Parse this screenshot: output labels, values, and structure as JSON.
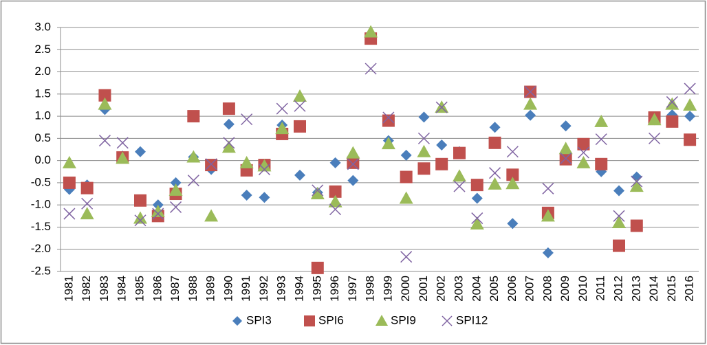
{
  "chart_data": {
    "type": "scatter",
    "categories": [
      "1981",
      "1982",
      "1983",
      "1984",
      "1985",
      "1986",
      "1987",
      "1988",
      "1989",
      "1990",
      "1991",
      "1992",
      "1993",
      "1994",
      "1995",
      "1996",
      "1997",
      "1998",
      "1999",
      "2000",
      "2001",
      "2002",
      "2003",
      "2004",
      "2005",
      "2006",
      "2007",
      "2008",
      "2009",
      "2010",
      "2011",
      "2012",
      "2013",
      "2014",
      "2015",
      "2016"
    ],
    "series": [
      {
        "name": "SPI3",
        "color": "#4a7ebb",
        "marker": "diamond",
        "values": [
          -0.65,
          -0.55,
          1.15,
          0.1,
          0.2,
          -1.0,
          -0.5,
          0.08,
          -0.2,
          0.82,
          -0.78,
          -0.83,
          0.8,
          -0.33,
          -0.72,
          -0.05,
          -0.45,
          2.85,
          0.45,
          0.12,
          0.98,
          0.35,
          0.2,
          -0.85,
          0.75,
          -1.42,
          1.02,
          -2.08,
          0.78,
          0.35,
          -0.25,
          -0.68,
          -0.37,
          0.92,
          1.03,
          1.0
        ]
      },
      {
        "name": "SPI6",
        "color": "#c0504d",
        "marker": "square",
        "values": [
          -0.5,
          -0.62,
          1.47,
          0.07,
          -0.9,
          -1.25,
          -0.75,
          1.0,
          -0.1,
          1.17,
          -0.22,
          -0.1,
          0.6,
          0.77,
          -2.42,
          -0.7,
          -0.05,
          2.75,
          0.9,
          -0.37,
          -0.18,
          -0.08,
          0.17,
          -0.55,
          0.4,
          -0.32,
          1.55,
          -1.18,
          0.03,
          0.37,
          -0.08,
          -1.92,
          -1.47,
          0.97,
          0.88,
          0.47
        ]
      },
      {
        "name": "SPI9",
        "color": "#9bbb59",
        "marker": "triangle",
        "values": [
          -0.05,
          -1.2,
          1.27,
          0.05,
          -1.3,
          -1.15,
          -0.67,
          0.08,
          -1.25,
          0.3,
          -0.05,
          -0.12,
          0.72,
          1.45,
          -0.75,
          -0.93,
          0.17,
          2.9,
          0.38,
          -0.85,
          0.2,
          1.2,
          -0.35,
          -1.43,
          -0.53,
          -0.52,
          1.27,
          -1.25,
          0.27,
          -0.05,
          0.88,
          -1.4,
          -0.58,
          0.92,
          1.27,
          1.25
        ]
      },
      {
        "name": "SPI12",
        "color": "#8064a2",
        "marker": "cross",
        "values": [
          -1.2,
          -0.97,
          0.45,
          0.4,
          -1.35,
          -1.2,
          -1.05,
          -0.45,
          -0.08,
          0.4,
          0.93,
          -0.2,
          1.17,
          1.23,
          -0.67,
          -1.1,
          -0.08,
          2.07,
          0.97,
          -2.17,
          0.5,
          1.2,
          -0.58,
          -1.3,
          -0.28,
          0.2,
          1.55,
          -0.63,
          0.05,
          0.18,
          0.48,
          -1.25,
          -0.47,
          0.5,
          1.32,
          1.62
        ]
      }
    ],
    "ylim": [
      -2.5,
      3.0
    ],
    "yticks": [
      {
        "value": -2.5,
        "label": "-2.5"
      },
      {
        "value": -2.0,
        "label": "-2.0"
      },
      -1.5,
      {
        "value": -1.0,
        "label": "-1.0"
      },
      -0.5,
      {
        "value": 0.0,
        "label": "0.0"
      },
      0.5,
      {
        "value": 1.0,
        "label": "1.0"
      },
      1.5,
      {
        "value": 2.0,
        "label": "2.0"
      },
      2.5,
      {
        "value": 3.0,
        "label": "3.0"
      }
    ],
    "grid": true,
    "legend": "bottom"
  }
}
